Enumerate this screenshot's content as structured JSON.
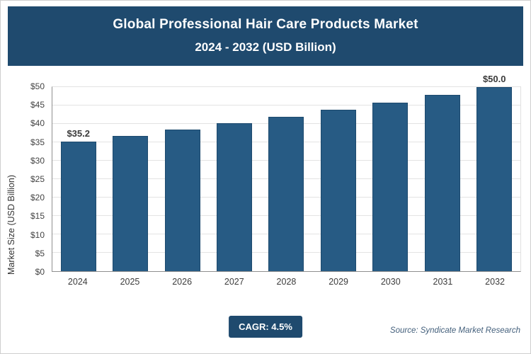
{
  "header": {
    "title": "Global Professional Hair Care Products Market",
    "subtitle": "2024 - 2032 (USD Billion)"
  },
  "footer": {
    "cagr_label": "CAGR: 4.5%",
    "source": "Source: Syndicate Market Research"
  },
  "colors": {
    "header_bg": "#1f4a6e",
    "bar_fill": "#275b84",
    "badge_bg": "#1f4a6e"
  },
  "chart_data": {
    "type": "bar",
    "title": "Global Professional Hair Care Products Market 2024 - 2032 (USD Billion)",
    "categories": [
      "2024",
      "2025",
      "2026",
      "2027",
      "2028",
      "2029",
      "2030",
      "2031",
      "2032"
    ],
    "values": [
      35.2,
      36.8,
      38.4,
      40.2,
      42.0,
      43.9,
      45.8,
      47.9,
      50.0
    ],
    "xlabel": "",
    "ylabel": "Market Size (USD Billion)",
    "ylim": [
      0,
      50
    ],
    "ytick_step": 5,
    "ytick_prefix": "$",
    "grid": true,
    "legend": false,
    "data_labels": {
      "first": "$35.2",
      "last": "$50.0"
    }
  }
}
